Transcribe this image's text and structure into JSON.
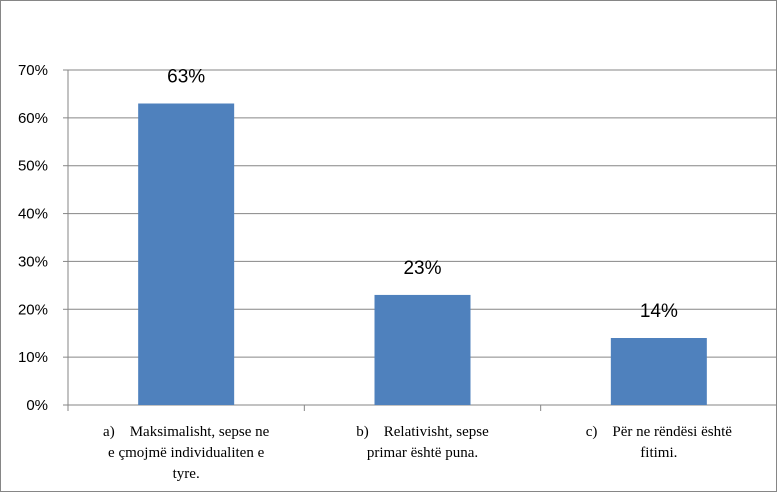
{
  "chart_data": {
    "type": "bar",
    "categories": [
      "a)    Maksimalisht, sepse ne e çmojmë individualiten e tyre.",
      "b)    Relativisht, sepse primar është puna.",
      "c)    Për ne rëndësi është fitimi."
    ],
    "category_lines": [
      [
        "a)    Maksimalisht, sepse ne",
        "e çmojmë individualiten e",
        "tyre."
      ],
      [
        "b)    Relativisht, sepse",
        "primar është puna."
      ],
      [
        "c)    Për ne rëndësi është",
        "fitimi."
      ]
    ],
    "values": [
      63,
      23,
      14
    ],
    "data_labels": [
      "63%",
      "23%",
      "14%"
    ],
    "y_ticks": [
      "0%",
      "10%",
      "20%",
      "30%",
      "40%",
      "50%",
      "60%",
      "70%"
    ],
    "ylim": [
      0,
      70
    ],
    "y_unit": "%",
    "grid": true,
    "legend": "none",
    "title": "",
    "xlabel": "",
    "ylabel": "",
    "colors": {
      "bar": "#4F81BD",
      "grid": "#868686",
      "axis": "#868686"
    }
  }
}
